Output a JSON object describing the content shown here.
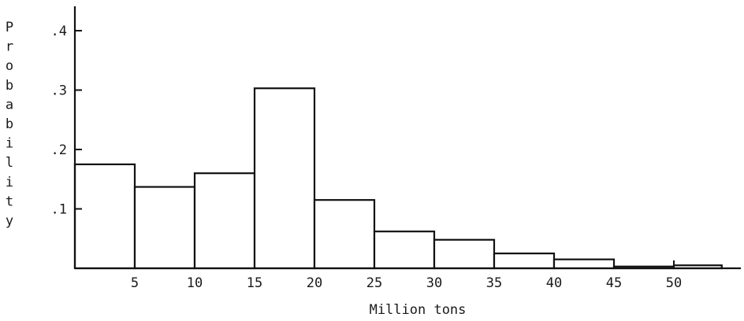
{
  "chart_data": {
    "type": "bar",
    "title": "",
    "xlabel": "Million tons",
    "ylabel": "Probability",
    "ylabel_letters": [
      "P",
      "r",
      "o",
      "b",
      "a",
      "b",
      "i",
      "l",
      "i",
      "t",
      "y"
    ],
    "bins": [
      {
        "x0": 0,
        "x1": 5,
        "value": 0.175
      },
      {
        "x0": 5,
        "x1": 10,
        "value": 0.137
      },
      {
        "x0": 10,
        "x1": 15,
        "value": 0.16
      },
      {
        "x0": 15,
        "x1": 20,
        "value": 0.303
      },
      {
        "x0": 20,
        "x1": 25,
        "value": 0.115
      },
      {
        "x0": 25,
        "x1": 30,
        "value": 0.062
      },
      {
        "x0": 30,
        "x1": 35,
        "value": 0.048
      },
      {
        "x0": 35,
        "x1": 40,
        "value": 0.025
      },
      {
        "x0": 40,
        "x1": 45,
        "value": 0.015
      },
      {
        "x0": 45,
        "x1": 50,
        "value": 0.003
      },
      {
        "x0": 50,
        "x1": 54,
        "value": 0.005
      }
    ],
    "x_ticks": [
      5,
      10,
      15,
      20,
      25,
      30,
      35,
      40,
      45,
      50
    ],
    "x_tick_labels": [
      "5",
      "10",
      "15",
      "20",
      "25",
      "30",
      "35",
      "40",
      "45",
      "50"
    ],
    "y_ticks": [
      0.1,
      0.2,
      0.3,
      0.4
    ],
    "y_tick_labels": [
      ".1",
      ".2",
      ".3",
      ".4"
    ],
    "xlim": [
      0,
      56
    ],
    "ylim": [
      0,
      0.44
    ],
    "grid": false
  }
}
